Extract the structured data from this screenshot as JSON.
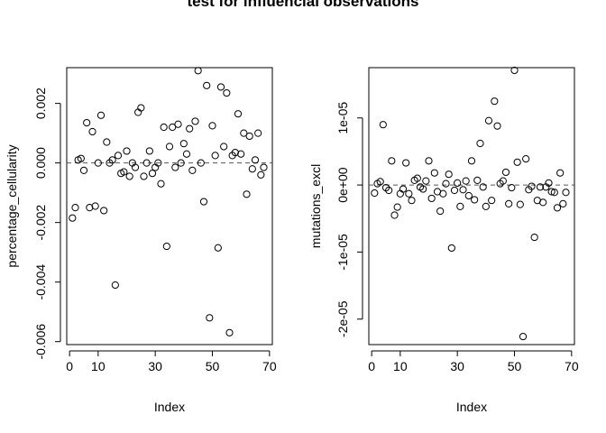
{
  "figure_title": "test for influencial observations",
  "chart_data": [
    {
      "type": "scatter",
      "xlabel": "Index",
      "ylabel": "percentage_cellularity",
      "xlim": [
        -1,
        71
      ],
      "ylim": [
        -0.0061,
        0.0032
      ],
      "xticks": [
        0,
        10,
        30,
        50,
        70
      ],
      "xtick_labels": [
        "0",
        "10",
        "30",
        "50",
        "70"
      ],
      "yticks": [
        -0.006,
        -0.004,
        -0.002,
        0,
        0.002
      ],
      "ytick_labels": [
        "-0.006",
        "-0.004",
        "-0.002",
        "0.000",
        "0.002"
      ],
      "hline": 0,
      "x": [
        1,
        2,
        3,
        4,
        5,
        6,
        7,
        8,
        9,
        10,
        11,
        12,
        13,
        14,
        15,
        16,
        17,
        18,
        19,
        20,
        21,
        22,
        23,
        24,
        25,
        26,
        27,
        28,
        29,
        30,
        31,
        32,
        33,
        34,
        35,
        36,
        37,
        38,
        39,
        40,
        41,
        42,
        43,
        44,
        45,
        46,
        47,
        48,
        49,
        50,
        51,
        52,
        53,
        54,
        55,
        56,
        57,
        58,
        59,
        60,
        61,
        62,
        63,
        64,
        65,
        66,
        67,
        68
      ],
      "y": [
        -0.00185,
        -0.0015,
        0.0001,
        0.00015,
        -0.00025,
        0.00135,
        -0.0015,
        0.00105,
        -0.00145,
        0,
        0.0016,
        -0.0016,
        0.0007,
        0,
        0.0001,
        -0.0041,
        0.00025,
        -0.00035,
        -0.0003,
        0.0004,
        -0.00045,
        0,
        -0.00015,
        0.0017,
        0.00185,
        -0.00045,
        0,
        0.0004,
        -0.00035,
        -0.00015,
        0,
        -0.0007,
        0.0012,
        -0.0028,
        0.00055,
        0.0012,
        -0.00015,
        0.0013,
        0,
        0.00065,
        0.0003,
        0.00115,
        -0.00025,
        0.0014,
        0.0031,
        0,
        -0.0013,
        0.0026,
        -0.0052,
        0.00125,
        0.00025,
        -0.00285,
        0.00255,
        0.00055,
        0.00235,
        -0.0057,
        0.00025,
        0.00035,
        0.00165,
        0.0003,
        0.001,
        -0.00105,
        0.0009,
        -0.0002,
        0.0001,
        0.001,
        -0.0004,
        -0.00015
      ]
    },
    {
      "type": "scatter",
      "xlabel": "Index",
      "ylabel": "mutations_excl",
      "xlim": [
        -1,
        71
      ],
      "ylim": [
        -2.38e-05,
        1.75e-05
      ],
      "xticks": [
        0,
        10,
        30,
        50,
        70
      ],
      "xtick_labels": [
        "0",
        "10",
        "30",
        "50",
        "70"
      ],
      "yticks": [
        -2e-05,
        -1e-05,
        0,
        1e-05
      ],
      "ytick_labels": [
        "-2e-05",
        "-1e-05",
        "0e+00",
        "1e-05"
      ],
      "hline": 0,
      "x": [
        1,
        2,
        3,
        4,
        5,
        6,
        7,
        8,
        9,
        10,
        11,
        12,
        13,
        14,
        15,
        16,
        17,
        18,
        19,
        20,
        21,
        22,
        23,
        24,
        25,
        26,
        27,
        28,
        29,
        30,
        31,
        32,
        33,
        34,
        35,
        36,
        37,
        38,
        39,
        40,
        41,
        42,
        43,
        44,
        45,
        46,
        47,
        48,
        49,
        50,
        51,
        52,
        53,
        54,
        55,
        56,
        57,
        58,
        59,
        60,
        61,
        62,
        63,
        64,
        65,
        66,
        67,
        68
      ],
      "y": [
        -1.2e-06,
        2e-07,
        5e-07,
        9e-06,
        -4e-07,
        -8e-07,
        3.6e-06,
        -4.5e-06,
        -3.3e-06,
        -1.3e-06,
        -6e-07,
        3.3e-06,
        -1.3e-06,
        -2.3e-06,
        7e-07,
        1e-06,
        -3e-07,
        -6e-07,
        6e-07,
        3.6e-06,
        -2e-06,
        1.8e-06,
        -1e-06,
        -3.9e-06,
        -1.3e-06,
        2e-07,
        1.6e-06,
        -9.4e-06,
        -8e-07,
        3e-07,
        -3.2e-06,
        -7e-07,
        6e-07,
        -1.6e-06,
        3.6e-06,
        -2.2e-06,
        7e-07,
        6.2e-06,
        -3e-07,
        -3.2e-06,
        9.6e-06,
        -2.3e-06,
        1.25e-05,
        8.8e-06,
        2e-07,
        6e-07,
        1.9e-06,
        -2.8e-06,
        -4e-07,
        1.71e-05,
        3.4e-06,
        -2.9e-06,
        -2.26e-05,
        3.9e-06,
        -7e-07,
        -2e-07,
        -7.8e-06,
        -2.3e-06,
        -3e-07,
        -2.6e-06,
        -3e-07,
        3e-07,
        -1e-06,
        -1.1e-06,
        -3.4e-06,
        1.8e-06,
        -2.8e-06,
        -1.1e-06
      ]
    }
  ]
}
